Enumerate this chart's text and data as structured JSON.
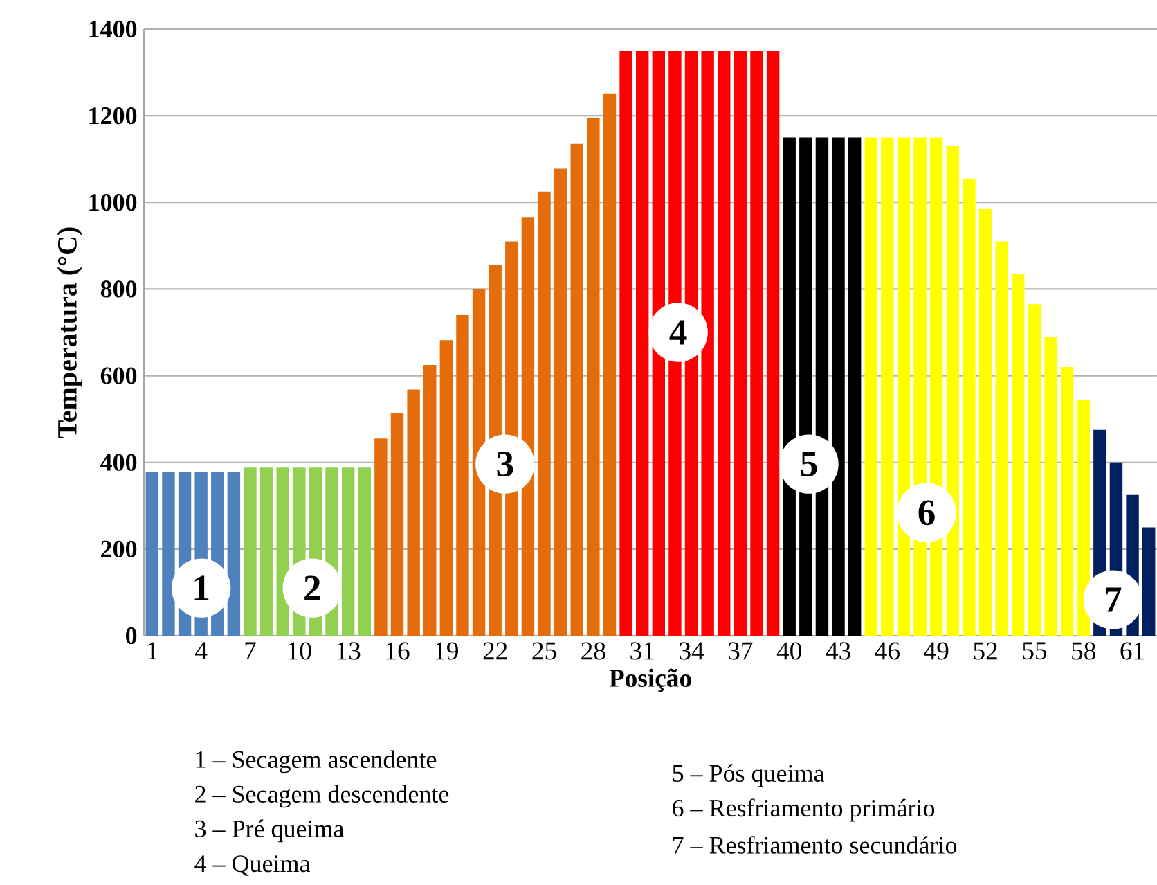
{
  "chart_data": {
    "type": "bar",
    "xlabel": "Posição",
    "ylabel": "Temperatura (°C)",
    "x": [
      1,
      2,
      3,
      4,
      5,
      6,
      7,
      8,
      9,
      10,
      11,
      12,
      13,
      14,
      15,
      16,
      17,
      18,
      19,
      20,
      21,
      22,
      23,
      24,
      25,
      26,
      27,
      28,
      29,
      30,
      31,
      32,
      33,
      34,
      35,
      36,
      37,
      38,
      39,
      40,
      41,
      42,
      43,
      44,
      45,
      46,
      47,
      48,
      49,
      50,
      51,
      52,
      53,
      54,
      55,
      56,
      57,
      58,
      59,
      60,
      61,
      62
    ],
    "values": [
      378,
      378,
      378,
      378,
      378,
      378,
      388,
      388,
      388,
      388,
      388,
      388,
      388,
      388,
      455,
      513,
      568,
      625,
      682,
      740,
      800,
      855,
      910,
      965,
      1025,
      1078,
      1135,
      1195,
      1250,
      1350,
      1350,
      1350,
      1350,
      1350,
      1350,
      1350,
      1350,
      1350,
      1350,
      1150,
      1150,
      1150,
      1150,
      1150,
      1150,
      1150,
      1150,
      1150,
      1150,
      1130,
      1055,
      985,
      910,
      835,
      765,
      690,
      620,
      545,
      475,
      400,
      325,
      250
    ],
    "colors": [
      "#4f81bd",
      "#4f81bd",
      "#4f81bd",
      "#4f81bd",
      "#4f81bd",
      "#4f81bd",
      "#92d050",
      "#92d050",
      "#92d050",
      "#92d050",
      "#92d050",
      "#92d050",
      "#92d050",
      "#92d050",
      "#e46c0a",
      "#e46c0a",
      "#e46c0a",
      "#e46c0a",
      "#e46c0a",
      "#e46c0a",
      "#e46c0a",
      "#e46c0a",
      "#e46c0a",
      "#e46c0a",
      "#e46c0a",
      "#e46c0a",
      "#e46c0a",
      "#e46c0a",
      "#e46c0a",
      "#ff0000",
      "#ff0000",
      "#ff0000",
      "#ff0000",
      "#ff0000",
      "#ff0000",
      "#ff0000",
      "#ff0000",
      "#ff0000",
      "#ff0000",
      "#000000",
      "#000000",
      "#000000",
      "#000000",
      "#000000",
      "#ffff00",
      "#ffff00",
      "#ffff00",
      "#ffff00",
      "#ffff00",
      "#ffff00",
      "#ffff00",
      "#ffff00",
      "#ffff00",
      "#ffff00",
      "#ffff00",
      "#ffff00",
      "#ffff00",
      "#ffff00",
      "#002060",
      "#002060",
      "#002060",
      "#002060"
    ],
    "xlim": [
      0.5,
      62.5
    ],
    "xticks": [
      1,
      4,
      7,
      10,
      13,
      16,
      19,
      22,
      25,
      28,
      31,
      34,
      37,
      40,
      43,
      46,
      49,
      52,
      55,
      58,
      61
    ],
    "ylim": [
      0,
      1400
    ],
    "yticks": [
      0,
      200,
      400,
      600,
      800,
      1000,
      1200,
      1400
    ],
    "grid": "y",
    "annotations": [
      {
        "text": "1",
        "x": 4,
        "y": 110
      },
      {
        "text": "2",
        "x": 10.8,
        "y": 110
      },
      {
        "text": "3",
        "x": 22.6,
        "y": 396
      },
      {
        "text": "4",
        "x": 33.2,
        "y": 700
      },
      {
        "text": "5",
        "x": 41.2,
        "y": 396
      },
      {
        "text": "6",
        "x": 48.4,
        "y": 284
      },
      {
        "text": "7",
        "x": 59.8,
        "y": 83
      },
      "1 – Secagem ascendente",
      "2 – Secagem descendente",
      "3 – Pré queima",
      "4 – Queima",
      "5 – Pós queima",
      "6 – Resfriamento primário",
      "7 – Resfriamento secundário"
    ]
  }
}
